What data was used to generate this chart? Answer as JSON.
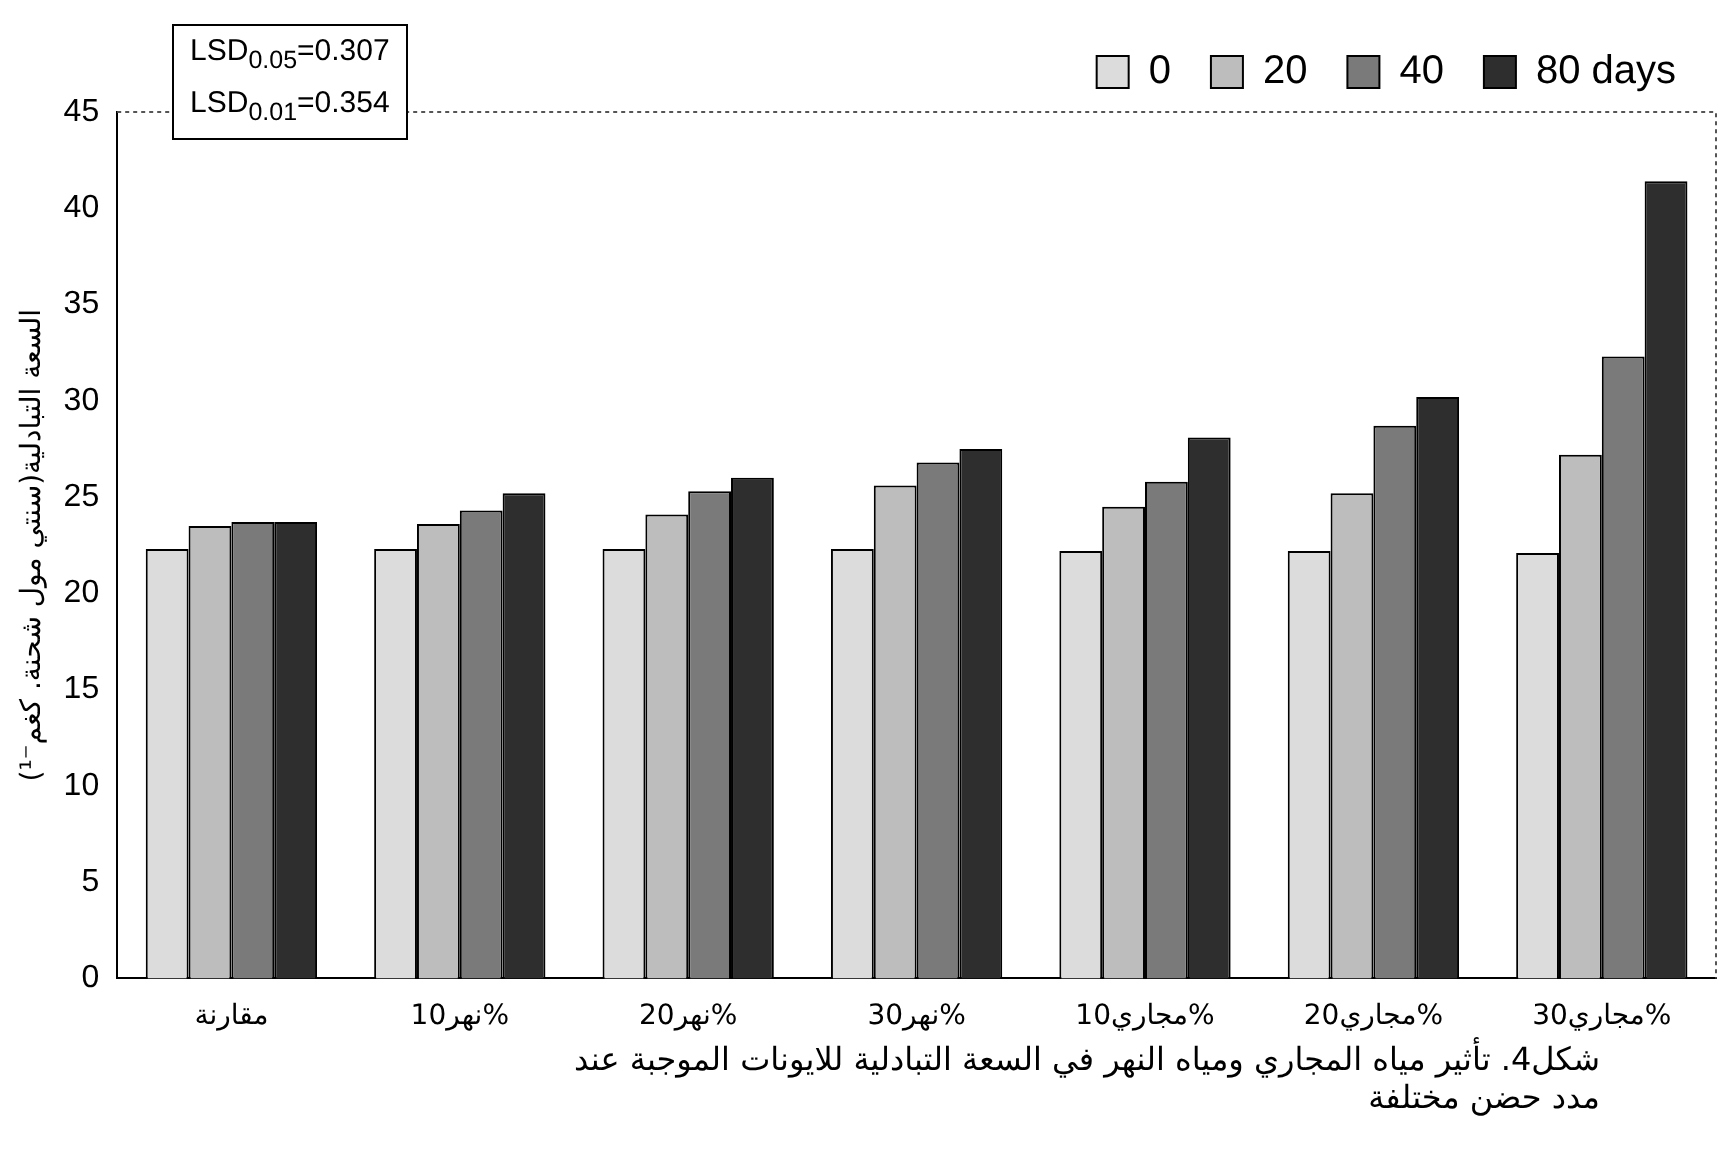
{
  "chart_data": {
    "type": "bar",
    "title": "شكل4. تأثير مياه المجاري ومياه النهر في السعة التبادلية للايونات الموجبة عند مدد حضن مختلفة",
    "ylabel": "السعة التبادلية(سنتي مول شحنة. كغم⁻¹)",
    "categories": [
      "مقارنة",
      "نهر10%",
      "نهر20%",
      "نهر30%",
      "مجاري10%",
      "مجاري20%",
      "مجاري30%"
    ],
    "series": [
      {
        "name": "0",
        "color": "#dcdcdc",
        "values": [
          22.3,
          22.3,
          22.3,
          22.3,
          22.2,
          22.2,
          22.1
        ]
      },
      {
        "name": "20",
        "color": "#bdbdbd",
        "values": [
          23.5,
          23.6,
          24.1,
          25.6,
          24.5,
          25.2,
          27.2
        ]
      },
      {
        "name": "40",
        "color": "#7a7a7a",
        "values": [
          23.7,
          24.3,
          25.3,
          26.8,
          25.8,
          28.7,
          32.3
        ]
      },
      {
        "name": "80 days",
        "color": "#2e2e2e",
        "values": [
          23.7,
          25.2,
          26.0,
          27.5,
          28.1,
          30.2,
          41.4
        ]
      }
    ],
    "ylim": [
      0,
      45
    ],
    "yticks": [
      0,
      5,
      10,
      15,
      20,
      25,
      30,
      35,
      40,
      45
    ],
    "grid": false,
    "legend": "top",
    "annotations": [
      "LSD$_{0.05}$=0.307",
      "LSD$_{0.01}$=0.354"
    ]
  }
}
